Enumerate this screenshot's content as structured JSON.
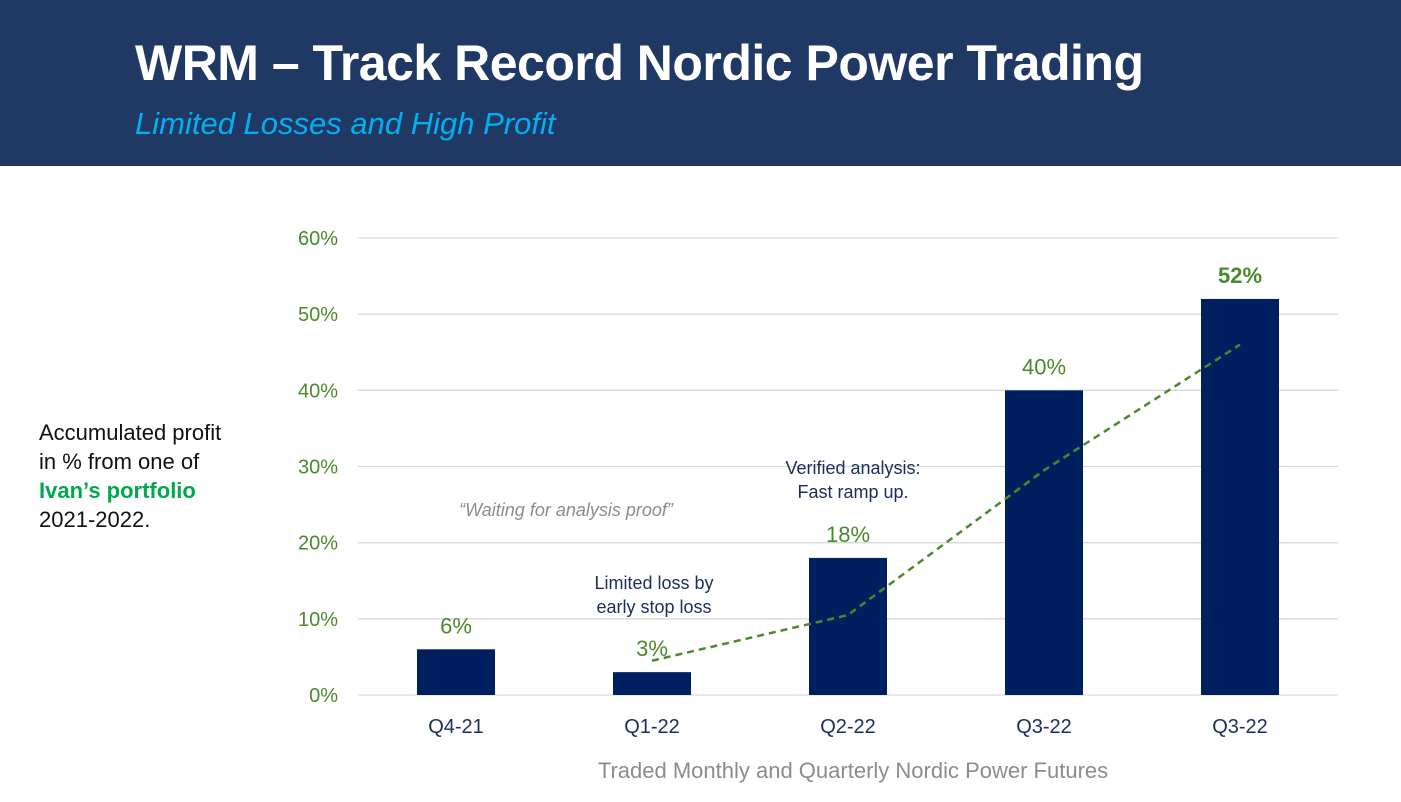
{
  "header": {
    "title": "WRM – Track Record Nordic Power Trading",
    "subtitle": "Limited Losses and High Profit"
  },
  "side_note": {
    "line1": "Accumulated profit",
    "line2": "in % from one of",
    "highlight": "Ivan’s portfolio",
    "line4": "2021-2022."
  },
  "colors": {
    "bar": "#001f5f",
    "trend": "#4a8a2c",
    "header_bg": "#203864",
    "subtitle": "#00b0f0",
    "highlight": "#00a84f"
  },
  "chart_data": {
    "type": "bar",
    "categories": [
      "Q4-21",
      "Q1-22",
      "Q2-22",
      "Q3-22",
      "Q3-22"
    ],
    "values": [
      6,
      3,
      18,
      40,
      52
    ],
    "value_labels": [
      "6%",
      "3%",
      "18%",
      "40%",
      "52%"
    ],
    "xlabel": "Traded Monthly and Quarterly Nordic Power Futures",
    "ylabel": "",
    "ylim": [
      0,
      60
    ],
    "yticks": [
      0,
      10,
      20,
      30,
      40,
      50,
      60
    ],
    "ytick_labels": [
      "0%",
      "10%",
      "20%",
      "30%",
      "40%",
      "50%",
      "60%"
    ],
    "grid": true,
    "trend_line": {
      "style": "dashed",
      "points": [
        [
          1,
          4.5
        ],
        [
          2,
          10.5
        ],
        [
          3,
          29.5
        ],
        [
          4,
          46
        ]
      ]
    },
    "annotations": [
      {
        "text": "“Waiting for analysis proof”",
        "style": "italic-grey",
        "lines": [
          "“Waiting for analysis proof”"
        ]
      },
      {
        "text": "Limited loss by early stop loss",
        "style": "navy",
        "lines": [
          "Limited loss by",
          "early stop loss"
        ]
      },
      {
        "text": "Verified analysis: Fast ramp up.",
        "style": "navy",
        "lines": [
          "Verified analysis:",
          "Fast ramp up."
        ]
      }
    ]
  }
}
